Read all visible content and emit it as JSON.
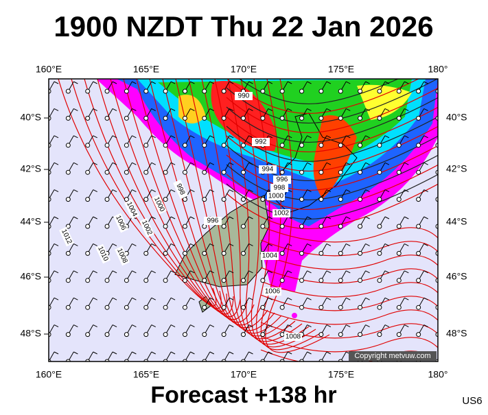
{
  "title": "1900 NZDT Thu 22 Jan 2026",
  "footer": "Forecast +138 hr",
  "region": "US6",
  "copyright": "Copyright metvuw.com",
  "lon_labels": [
    "160°E",
    "165°E",
    "170°E",
    "175°E",
    "180°"
  ],
  "lat_labels": [
    "40°S",
    "42°S",
    "44°S",
    "46°S",
    "48°S"
  ],
  "isobar_labels": [
    "990",
    "992",
    "994",
    "996",
    "998",
    "1000",
    "1002",
    "1004",
    "1006",
    "1008",
    "996",
    "998",
    "1000",
    "1002",
    "1004",
    "1006",
    "1008",
    "1010",
    "1012"
  ]
}
